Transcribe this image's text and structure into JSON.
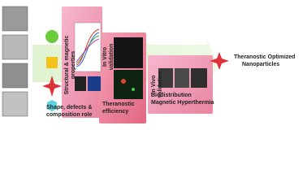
{
  "panels": [
    {
      "title": [
        "Structural & magnetic",
        "properties"
      ],
      "caption": [
        "Shape, defects &",
        "composition role"
      ]
    },
    {
      "title": [
        "In Vitro",
        "validation"
      ],
      "caption": [
        "Theranostic",
        "efficiency"
      ]
    },
    {
      "title": [
        "In Vivo",
        "validation"
      ],
      "caption": [
        "Biodistribution",
        "Magnetic Hyperthermia"
      ]
    }
  ],
  "result": [
    "Theranostic Optimized",
    "Nanoparticles"
  ]
}
